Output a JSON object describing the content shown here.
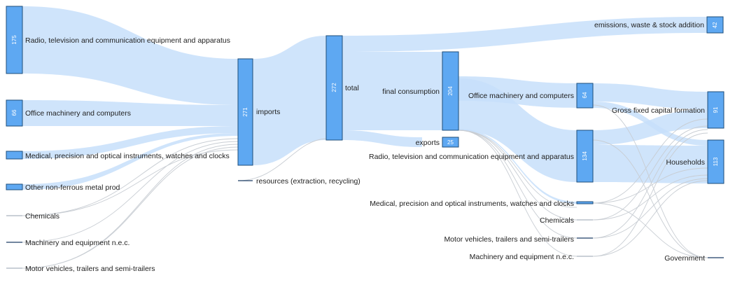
{
  "nodes": {
    "radio_tv_src": {
      "label": "Radio, television and communication equipment and apparatus",
      "value": "175"
    },
    "office_src": {
      "label": "Office machinery and computers",
      "value": "66"
    },
    "medical_src": {
      "label": "Medical, precision and optical instruments, watches and clocks"
    },
    "nonferrous_src": {
      "label": "Other non-ferrous metal prod"
    },
    "chemicals_src": {
      "label": "Chemicals"
    },
    "machinery_src": {
      "label": "Machinery and equipment n.e.c."
    },
    "motor_src": {
      "label": "Motor vehicles, trailers and semi-trailers"
    },
    "imports": {
      "label": "imports",
      "value": "271"
    },
    "resources": {
      "label": "resources (extraction, recycling)"
    },
    "total": {
      "label": "total",
      "value": "272"
    },
    "emissions": {
      "label": "emissions, waste & stock addition",
      "value": "42"
    },
    "final_consumption": {
      "label": "final consumption",
      "value": "204"
    },
    "exports": {
      "label": "exports",
      "value": "25"
    },
    "office_dst": {
      "label": "Office machinery and computers",
      "value": "64"
    },
    "radio_tv_dst": {
      "label": "Radio, television and communication equipment and apparatus",
      "value": "134"
    },
    "medical_dst": {
      "label": "Medical, precision and optical instruments, watches and clocks"
    },
    "chemicals_dst": {
      "label": "Chemicals"
    },
    "motor_dst": {
      "label": "Motor vehicles, trailers and semi-trailers"
    },
    "machinery_dst": {
      "label": "Machinery and equipment n.e.c."
    },
    "gfcf": {
      "label": "Gross fixed capital formation",
      "value": "91"
    },
    "households": {
      "label": "Households",
      "value": "113"
    },
    "government": {
      "label": "Government"
    }
  },
  "colors": {
    "node_fill": "#5ea8f2",
    "node_stroke": "#1f4e79",
    "link_fill": "#c7dffa",
    "minor_link": "#c8cdd3",
    "text": "#222222"
  }
}
